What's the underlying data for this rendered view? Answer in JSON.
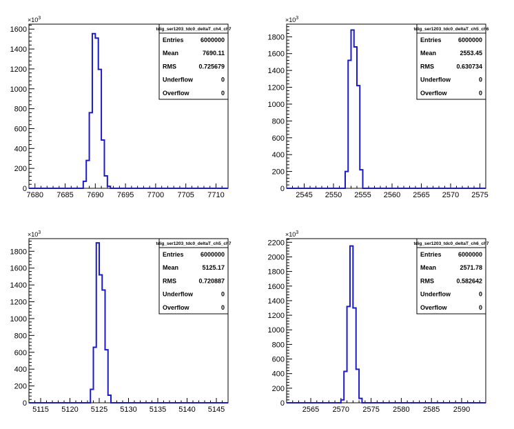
{
  "chart_data": [
    {
      "type": "histogram",
      "title": "tdig_ser1203_tdc0_deltaT_ch4_ch7",
      "y_multiplier": "×10^3",
      "xlim": [
        7679,
        7712
      ],
      "ylim": [
        0,
        1650
      ],
      "x_ticks": [
        7680,
        7685,
        7690,
        7695,
        7700,
        7705,
        7710
      ],
      "y_ticks": [
        0,
        200,
        400,
        600,
        800,
        1000,
        1200,
        1400,
        1600
      ],
      "bins": {
        "x": [
          7688,
          7688.5,
          7689,
          7689.5,
          7690,
          7690.5,
          7691,
          7691.5,
          7692
        ],
        "values": [
          70,
          280,
          760,
          1555,
          1510,
          1195,
          485,
          125,
          20
        ]
      },
      "stats": [
        {
          "label": "Entries",
          "value": "6000000"
        },
        {
          "label": "Mean",
          "value": "7690.11"
        },
        {
          "label": "RMS",
          "value": "0.725679"
        },
        {
          "label": "Underflow",
          "value": "0"
        },
        {
          "label": "Overflow",
          "value": "0"
        }
      ]
    },
    {
      "type": "histogram",
      "title": "tdig_ser1203_tdc0_deltaT_ch5_ch6",
      "y_multiplier": "×10^3",
      "xlim": [
        2542,
        2576
      ],
      "ylim": [
        0,
        1950
      ],
      "x_ticks": [
        2545,
        2550,
        2555,
        2560,
        2565,
        2570,
        2575
      ],
      "y_ticks": [
        0,
        200,
        400,
        600,
        800,
        1000,
        1200,
        1400,
        1600,
        1800
      ],
      "bins": {
        "x": [
          2552,
          2552.5,
          2553,
          2553.5,
          2554,
          2554.5
        ],
        "values": [
          200,
          1520,
          1880,
          1680,
          1220,
          220
        ]
      },
      "stats": [
        {
          "label": "Entries",
          "value": "6000000"
        },
        {
          "label": "Mean",
          "value": "2553.45"
        },
        {
          "label": "RMS",
          "value": "0.630734"
        },
        {
          "label": "Underflow",
          "value": "0"
        },
        {
          "label": "Overflow",
          "value": "0"
        }
      ]
    },
    {
      "type": "histogram",
      "title": "tdig_ser1203_tdc0_deltaT_ch5_ch7",
      "y_multiplier": "×10^3",
      "xlim": [
        5113,
        5147
      ],
      "ylim": [
        0,
        1950
      ],
      "x_ticks": [
        5115,
        5120,
        5125,
        5130,
        5135,
        5140,
        5145
      ],
      "y_ticks": [
        0,
        200,
        400,
        600,
        800,
        1000,
        1200,
        1400,
        1600,
        1800
      ],
      "bins": {
        "x": [
          5123.5,
          5124,
          5124.5,
          5125,
          5125.5,
          5126,
          5126.5
        ],
        "values": [
          160,
          660,
          1900,
          1520,
          1340,
          630,
          90
        ]
      },
      "stats": [
        {
          "label": "Entries",
          "value": "6000000"
        },
        {
          "label": "Mean",
          "value": "5125.17"
        },
        {
          "label": "RMS",
          "value": "0.720887"
        },
        {
          "label": "Underflow",
          "value": "0"
        },
        {
          "label": "Overflow",
          "value": "0"
        }
      ]
    },
    {
      "type": "histogram",
      "title": "tdig_ser1203_tdc0_deltaT_ch6_ch7",
      "y_multiplier": "×10^3",
      "xlim": [
        2561,
        2594
      ],
      "ylim": [
        0,
        2250
      ],
      "x_ticks": [
        2565,
        2570,
        2575,
        2580,
        2585,
        2590
      ],
      "y_ticks": [
        0,
        200,
        400,
        600,
        800,
        1000,
        1200,
        1400,
        1600,
        1800,
        2000,
        2200
      ],
      "bins": {
        "x": [
          2570,
          2570.5,
          2571,
          2571.5,
          2572,
          2572.5,
          2573
        ],
        "values": [
          40,
          430,
          1320,
          2150,
          1300,
          460,
          60
        ]
      },
      "stats": [
        {
          "label": "Entries",
          "value": "6000000"
        },
        {
          "label": "Mean",
          "value": "2571.78"
        },
        {
          "label": "RMS",
          "value": "0.582642"
        },
        {
          "label": "Underflow",
          "value": "0"
        },
        {
          "label": "Overflow",
          "value": "0"
        }
      ]
    }
  ],
  "colors": {
    "histogram_line": "#1a1acc",
    "axis": "#000000",
    "background": "#ffffff"
  }
}
